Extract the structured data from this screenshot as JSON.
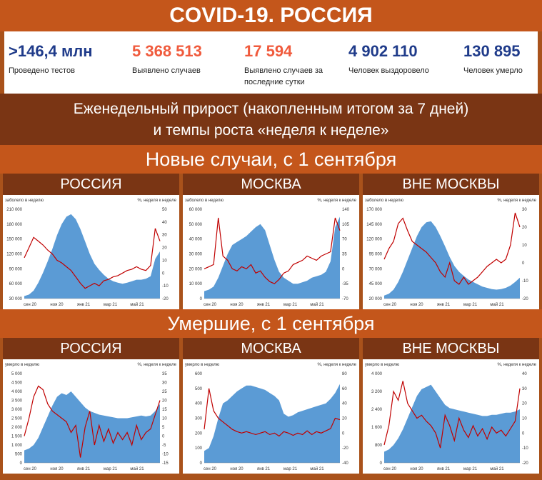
{
  "header": {
    "title": "COVID-19. РОССИЯ"
  },
  "stats": [
    {
      "value": ">146,4 млн",
      "label": "Проведено тестов",
      "color": "#1f3b8a"
    },
    {
      "value": "5 368 513",
      "label": "Выявлено случаев",
      "color": "#f05a3c"
    },
    {
      "value": "17 594",
      "label": "Выявлено случаев за последние сутки",
      "color": "#f05a3c"
    },
    {
      "value": "4 902 110",
      "label": "Человек выздоровело",
      "color": "#1f3b8a"
    },
    {
      "value": "130 895",
      "label": "Человек умерло",
      "color": "#1f3b8a"
    }
  ],
  "subtitle": {
    "line1": "Еженедельный прирост (накопленным итогом за 7 дней)",
    "line2": "и темпы роста «неделя к неделе»"
  },
  "sections": [
    {
      "title": "Новые случаи, с 1 сентября"
    },
    {
      "title": "Умершие, с 1 сентября"
    }
  ],
  "colors": {
    "area": "#5b9bd5",
    "line": "#c00000",
    "dark_banner": "#7a3514",
    "light_banner": "#c4561b"
  },
  "chart_data": [
    {
      "type": "area",
      "region": "РОССИЯ",
      "left_label": "заболело в неделю",
      "right_label": "%, неделя к неделе",
      "yticks": [
        "210 000",
        "180 000",
        "150 000",
        "120 000",
        "90 000",
        "60 000",
        "30 000"
      ],
      "y2ticks": [
        "50",
        "40",
        "30",
        "20",
        "10",
        "0",
        "-10",
        "-20"
      ],
      "xticks": [
        "сен 20",
        "ноя 20",
        "янв 21",
        "мар 21",
        "май 21"
      ],
      "ylim": [
        30000,
        210000
      ],
      "y2lim": [
        -20,
        50
      ],
      "series": [
        {
          "values": [
            35000,
            38000,
            46000,
            62000,
            82000,
            105000,
            130000,
            158000,
            180000,
            195000,
            200000,
            190000,
            170000,
            145000,
            120000,
            100000,
            88000,
            78000,
            70000,
            65000,
            62000,
            60000,
            62000,
            65000,
            68000,
            68000,
            70000,
            75000,
            110000,
            125000
          ]
        },
        {
          "values": [
            12,
            20,
            28,
            25,
            22,
            18,
            15,
            10,
            8,
            5,
            2,
            -3,
            -8,
            -12,
            -10,
            -8,
            -10,
            -6,
            -5,
            -3,
            -2,
            0,
            2,
            3,
            5,
            3,
            2,
            6,
            35,
            25
          ]
        }
      ]
    },
    {
      "type": "area",
      "region": "МОСКВА",
      "left_label": "заболело в неделю",
      "right_label": "%, неделя к неделе",
      "yticks": [
        "60 000",
        "50 000",
        "40 000",
        "30 000",
        "20 000",
        "10 000",
        "0"
      ],
      "y2ticks": [
        "140",
        "105",
        "70",
        "35",
        "0",
        "-35",
        "-70"
      ],
      "xticks": [
        "сен 20",
        "ноя 20",
        "янв 21",
        "мар 21",
        "май 21"
      ],
      "ylim": [
        0,
        60000
      ],
      "y2lim": [
        -70,
        140
      ],
      "series": [
        {
          "values": [
            5000,
            6000,
            8000,
            14000,
            22000,
            30000,
            36000,
            38000,
            40000,
            42000,
            45000,
            48000,
            50000,
            46000,
            36000,
            26000,
            18000,
            14000,
            12000,
            10000,
            10000,
            11000,
            12000,
            14000,
            15000,
            16000,
            18000,
            25000,
            48000,
            55000
          ]
        },
        {
          "values": [
            0,
            5,
            10,
            120,
            30,
            20,
            0,
            -5,
            5,
            0,
            10,
            -10,
            -5,
            -20,
            -30,
            -35,
            -25,
            -10,
            -5,
            10,
            15,
            20,
            30,
            25,
            20,
            30,
            35,
            40,
            120,
            90
          ]
        }
      ]
    },
    {
      "type": "area",
      "region": "ВНЕ МОСКВЫ",
      "left_label": "заболело в неделю",
      "right_label": "%, неделя к неделе",
      "yticks": [
        "170 000",
        "145 000",
        "120 000",
        "95 000",
        "70 000",
        "45 000",
        "20 000"
      ],
      "y2ticks": [
        "30",
        "20",
        "10",
        "0",
        "-10",
        "-20"
      ],
      "xticks": [
        "сен 20",
        "ноя 20",
        "янв 21",
        "мар 21",
        "май 21"
      ],
      "ylim": [
        20000,
        170000
      ],
      "y2lim": [
        -20,
        30
      ],
      "series": [
        {
          "values": [
            25000,
            28000,
            35000,
            48000,
            65000,
            85000,
            105000,
            125000,
            140000,
            148000,
            150000,
            140000,
            125000,
            108000,
            90000,
            75000,
            65000,
            58000,
            52000,
            48000,
            44000,
            40000,
            38000,
            36000,
            35000,
            36000,
            38000,
            42000,
            48000,
            55000
          ]
        },
        {
          "values": [
            2,
            8,
            12,
            22,
            25,
            18,
            12,
            10,
            8,
            6,
            3,
            0,
            -5,
            -8,
            0,
            -10,
            -12,
            -8,
            -12,
            -10,
            -8,
            -5,
            -2,
            0,
            2,
            0,
            2,
            10,
            28,
            20
          ]
        }
      ]
    },
    {
      "type": "area",
      "region": "РОССИЯ",
      "left_label": "умерло в неделю",
      "right_label": "%, неделя к неделе",
      "yticks": [
        "5 000",
        "4 500",
        "4 000",
        "3 500",
        "3 000",
        "2 500",
        "2 000",
        "1 500",
        "1 000",
        "500",
        "0"
      ],
      "y2ticks": [
        "35",
        "30",
        "25",
        "20",
        "15",
        "10",
        "5",
        "0",
        "-5",
        "-10",
        "-15"
      ],
      "xticks": [
        "сен 20",
        "ноя 20",
        "янв 21",
        "мар 21",
        "май 21"
      ],
      "ylim": [
        0,
        5000
      ],
      "y2lim": [
        -15,
        35
      ],
      "series": [
        {
          "values": [
            700,
            800,
            1000,
            1400,
            2000,
            2600,
            3200,
            3700,
            3900,
            3800,
            4000,
            3700,
            3400,
            3100,
            2900,
            2800,
            2700,
            2650,
            2600,
            2550,
            2500,
            2500,
            2500,
            2550,
            2600,
            2650,
            2600,
            2650,
            2900,
            3300
          ]
        },
        {
          "values": [
            0,
            10,
            22,
            28,
            26,
            18,
            14,
            12,
            10,
            8,
            2,
            6,
            -12,
            5,
            14,
            -5,
            6,
            -3,
            4,
            -4,
            2,
            -2,
            2,
            -5,
            6,
            -2,
            2,
            4,
            12,
            20
          ]
        }
      ]
    },
    {
      "type": "area",
      "region": "МОСКВА",
      "left_label": "умерло в неделю",
      "right_label": "%, неделя к неделе",
      "yticks": [
        "600",
        "500",
        "400",
        "300",
        "200",
        "100",
        "0"
      ],
      "y2ticks": [
        "80",
        "60",
        "40",
        "20",
        "0",
        "-20",
        "-40"
      ],
      "xticks": [
        "сен 20",
        "ноя 20",
        "янв 21",
        "мар 21",
        "май 21"
      ],
      "ylim": [
        0,
        600
      ],
      "y2lim": [
        -40,
        80
      ],
      "series": [
        {
          "values": [
            80,
            100,
            180,
            300,
            400,
            420,
            450,
            480,
            500,
            520,
            520,
            510,
            500,
            490,
            470,
            450,
            420,
            330,
            310,
            320,
            340,
            350,
            360,
            370,
            380,
            390,
            400,
            430,
            470,
            530
          ]
        },
        {
          "values": [
            5,
            60,
            30,
            20,
            15,
            10,
            5,
            2,
            0,
            2,
            0,
            -2,
            0,
            2,
            -2,
            0,
            -4,
            2,
            0,
            -3,
            0,
            -2,
            3,
            -2,
            2,
            0,
            3,
            6,
            20,
            18
          ]
        }
      ]
    },
    {
      "type": "area",
      "region": "ВНЕ МОСКВЫ",
      "left_label": "умерло в неделю",
      "right_label": "%, неделя к неделе",
      "yticks": [
        "4 000",
        "3 200",
        "2 400",
        "1 600",
        "800",
        "0"
      ],
      "y2ticks": [
        "40",
        "30",
        "20",
        "10",
        "0",
        "-10",
        "-20"
      ],
      "xticks": [
        "сен 20",
        "ноя 20",
        "янв 21",
        "мар 21",
        "май 21"
      ],
      "ylim": [
        0,
        4000
      ],
      "y2lim": [
        -20,
        40
      ],
      "series": [
        {
          "values": [
            500,
            600,
            800,
            1100,
            1500,
            2000,
            2500,
            3000,
            3300,
            3400,
            3500,
            3200,
            2900,
            2600,
            2450,
            2400,
            2350,
            2300,
            2250,
            2200,
            2150,
            2100,
            2100,
            2150,
            2150,
            2200,
            2250,
            2250,
            2300,
            2400
          ]
        },
        {
          "values": [
            -8,
            5,
            28,
            22,
            35,
            20,
            15,
            10,
            12,
            8,
            5,
            0,
            -10,
            12,
            5,
            -5,
            10,
            2,
            -3,
            5,
            -2,
            3,
            -4,
            4,
            0,
            2,
            -2,
            3,
            8,
            30
          ]
        }
      ]
    }
  ]
}
